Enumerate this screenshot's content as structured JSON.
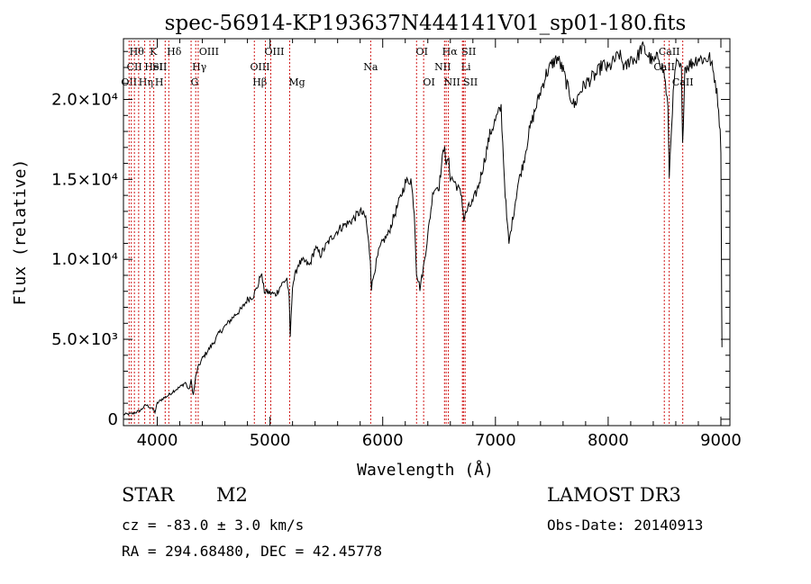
{
  "chart_data": {
    "type": "line",
    "title": "spec-56914-KP193637N444141V01_sp01-180.fits",
    "xlabel": "Wavelength (Å)",
    "ylabel": "Flux (relative)",
    "xlim": [
      3700,
      9080
    ],
    "ylim": [
      -400,
      23800
    ],
    "x_ticks": [
      {
        "v": 4000,
        "label": "4000"
      },
      {
        "v": 5000,
        "label": "5000"
      },
      {
        "v": 6000,
        "label": "6000"
      },
      {
        "v": 7000,
        "label": "7000"
      },
      {
        "v": 8000,
        "label": "8000"
      },
      {
        "v": 9000,
        "label": "9000"
      }
    ],
    "y_ticks": [
      {
        "v": 0,
        "label": "0"
      },
      {
        "v": 5000,
        "label": "5.0×10³"
      },
      {
        "v": 10000,
        "label": "1.0×10⁴"
      },
      {
        "v": 15000,
        "label": "1.5×10⁴"
      },
      {
        "v": 20000,
        "label": "2.0×10⁴"
      }
    ],
    "series": [
      {
        "name": "flux",
        "points": [
          [
            3700,
            300
          ],
          [
            3780,
            350
          ],
          [
            3850,
            550
          ],
          [
            3900,
            900
          ],
          [
            3950,
            700
          ],
          [
            3980,
            450
          ],
          [
            4000,
            1000
          ],
          [
            4050,
            1300
          ],
          [
            4100,
            1500
          ],
          [
            4150,
            1800
          ],
          [
            4200,
            2000
          ],
          [
            4250,
            2300
          ],
          [
            4280,
            1800
          ],
          [
            4300,
            2400
          ],
          [
            4320,
            1500
          ],
          [
            4340,
            2600
          ],
          [
            4360,
            3200
          ],
          [
            4400,
            3800
          ],
          [
            4450,
            4300
          ],
          [
            4500,
            4800
          ],
          [
            4550,
            5400
          ],
          [
            4600,
            5800
          ],
          [
            4650,
            6200
          ],
          [
            4700,
            6600
          ],
          [
            4750,
            6900
          ],
          [
            4800,
            7500
          ],
          [
            4850,
            7700
          ],
          [
            4870,
            8000
          ],
          [
            4900,
            8500
          ],
          [
            4920,
            9200
          ],
          [
            4950,
            8000
          ],
          [
            5000,
            7900
          ],
          [
            5050,
            7800
          ],
          [
            5100,
            8400
          ],
          [
            5150,
            8800
          ],
          [
            5170,
            7500
          ],
          [
            5180,
            5200
          ],
          [
            5200,
            8400
          ],
          [
            5250,
            9700
          ],
          [
            5300,
            9900
          ],
          [
            5350,
            9600
          ],
          [
            5400,
            10700
          ],
          [
            5450,
            10300
          ],
          [
            5500,
            10900
          ],
          [
            5550,
            11400
          ],
          [
            5600,
            11800
          ],
          [
            5650,
            12100
          ],
          [
            5700,
            12300
          ],
          [
            5750,
            12600
          ],
          [
            5800,
            13000
          ],
          [
            5850,
            12600
          ],
          [
            5890,
            10000
          ],
          [
            5900,
            8200
          ],
          [
            5930,
            9400
          ],
          [
            5970,
            10600
          ],
          [
            6000,
            11100
          ],
          [
            6050,
            11600
          ],
          [
            6100,
            12700
          ],
          [
            6150,
            13700
          ],
          [
            6200,
            14800
          ],
          [
            6250,
            15000
          ],
          [
            6280,
            13000
          ],
          [
            6300,
            9200
          ],
          [
            6330,
            8200
          ],
          [
            6360,
            9400
          ],
          [
            6400,
            11500
          ],
          [
            6450,
            14400
          ],
          [
            6500,
            14600
          ],
          [
            6550,
            17400
          ],
          [
            6563,
            15600
          ],
          [
            6580,
            16400
          ],
          [
            6600,
            15200
          ],
          [
            6650,
            14700
          ],
          [
            6700,
            14000
          ],
          [
            6720,
            12500
          ],
          [
            6750,
            13100
          ],
          [
            6800,
            13600
          ],
          [
            6850,
            14600
          ],
          [
            6900,
            16100
          ],
          [
            6950,
            17800
          ],
          [
            7000,
            18700
          ],
          [
            7050,
            19500
          ],
          [
            7080,
            15000
          ],
          [
            7100,
            12600
          ],
          [
            7120,
            11000
          ],
          [
            7150,
            12400
          ],
          [
            7200,
            14700
          ],
          [
            7250,
            16100
          ],
          [
            7300,
            18000
          ],
          [
            7350,
            19300
          ],
          [
            7400,
            20500
          ],
          [
            7450,
            21600
          ],
          [
            7500,
            22200
          ],
          [
            7550,
            22600
          ],
          [
            7600,
            21800
          ],
          [
            7650,
            20500
          ],
          [
            7700,
            19600
          ],
          [
            7750,
            20500
          ],
          [
            7800,
            21000
          ],
          [
            7850,
            21300
          ],
          [
            7900,
            21600
          ],
          [
            7950,
            22200
          ],
          [
            8000,
            21900
          ],
          [
            8050,
            22400
          ],
          [
            8100,
            22800
          ],
          [
            8150,
            21900
          ],
          [
            8200,
            22600
          ],
          [
            8250,
            22500
          ],
          [
            8300,
            23300
          ],
          [
            8350,
            22800
          ],
          [
            8400,
            22300
          ],
          [
            8450,
            22700
          ],
          [
            8500,
            21500
          ],
          [
            8530,
            19500
          ],
          [
            8542,
            15300
          ],
          [
            8570,
            19500
          ],
          [
            8600,
            22200
          ],
          [
            8650,
            21900
          ],
          [
            8660,
            17000
          ],
          [
            8680,
            22000
          ],
          [
            8750,
            22300
          ],
          [
            8800,
            22600
          ],
          [
            8850,
            22500
          ],
          [
            8900,
            22600
          ],
          [
            8950,
            21200
          ],
          [
            8980,
            19500
          ],
          [
            9000,
            17000
          ],
          [
            9005,
            10000
          ],
          [
            9010,
            4500
          ]
        ]
      }
    ],
    "line_markers": [
      {
        "x": 3750,
        "label": "OII",
        "row": 2,
        "dx": 0
      },
      {
        "x": 3770,
        "label": "Hθ",
        "row": 0,
        "dx": 6
      },
      {
        "x": 3797,
        "label": "CII",
        "row": 1,
        "dx": 0
      },
      {
        "x": 3835,
        "label": "Hη",
        "row": 2,
        "dx": 8
      },
      {
        "x": 3889,
        "label": "HeI",
        "row": 1,
        "dx": 10
      },
      {
        "x": 3934,
        "label": "K",
        "row": 0,
        "dx": 4
      },
      {
        "x": 3969,
        "label": "H",
        "row": 2,
        "dx": 6
      },
      {
        "x": 4070,
        "label": "SII",
        "row": 1,
        "dx": -6
      },
      {
        "x": 4102,
        "label": "Hδ",
        "row": 0,
        "dx": 6
      },
      {
        "x": 4300,
        "label": "G",
        "row": 2,
        "dx": 4
      },
      {
        "x": 4341,
        "label": "Hγ",
        "row": 1,
        "dx": 4
      },
      {
        "x": 4363,
        "label": "OIII",
        "row": 0,
        "dx": 12
      },
      {
        "x": 4861,
        "label": "Hβ",
        "row": 2,
        "dx": 6
      },
      {
        "x": 4959,
        "label": "OIII",
        "row": 1,
        "dx": -6
      },
      {
        "x": 5007,
        "label": "OIII",
        "row": 0,
        "dx": 4
      },
      {
        "x": 5175,
        "label": "Mg",
        "row": 2,
        "dx": 8
      },
      {
        "x": 5893,
        "label": "Na",
        "row": 1,
        "dx": 0
      },
      {
        "x": 6300,
        "label": "OI",
        "row": 0,
        "dx": 6
      },
      {
        "x": 6363,
        "label": "OI",
        "row": 2,
        "dx": 6
      },
      {
        "x": 6548,
        "label": "NII",
        "row": 1,
        "dx": -2
      },
      {
        "x": 6563,
        "label": "Hα",
        "row": 0,
        "dx": 4
      },
      {
        "x": 6583,
        "label": "NII",
        "row": 2,
        "dx": 4
      },
      {
        "x": 6707,
        "label": "Li",
        "row": 1,
        "dx": 4
      },
      {
        "x": 6716,
        "label": "SII",
        "row": 0,
        "dx": 6
      },
      {
        "x": 6731,
        "label": "SII",
        "row": 2,
        "dx": 6
      },
      {
        "x": 8498,
        "label": "CaII",
        "row": 1,
        "dx": 0
      },
      {
        "x": 8542,
        "label": "CaII",
        "row": 0,
        "dx": 0
      },
      {
        "x": 8662,
        "label": "CaII",
        "row": 2,
        "dx": 0
      }
    ]
  },
  "info": {
    "class": "STAR",
    "subclass": "M2",
    "survey": "LAMOST DR3",
    "cz": "cz = -83.0 ± 3.0 km/s",
    "obs_date": "Obs-Date: 20140913",
    "radec": "RA = 294.68480, DEC =  42.45778"
  }
}
